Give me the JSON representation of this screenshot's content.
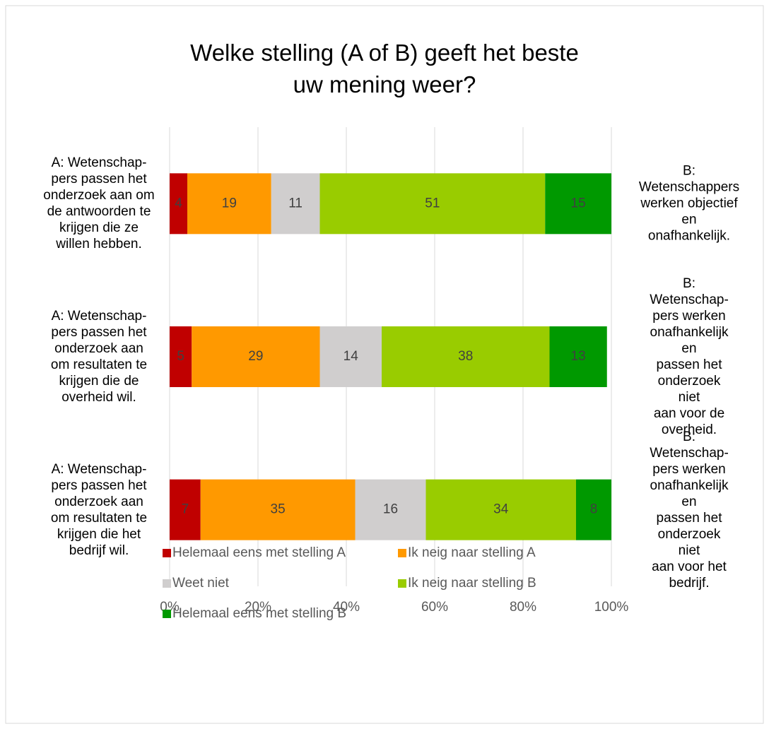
{
  "chart_data": {
    "type": "bar",
    "orientation": "horizontal",
    "stacked": true,
    "title": "Welke stelling (A of B) geeft het beste\nuw mening weer?",
    "categories": [
      "A: Wetenschap-\npers passen het\nonderzoek aan om\nde antwoorden te\nkrijgen die ze\nwillen hebben.",
      "A: Wetenschap-\npers passen het\nonderzoek aan\nom resultaten te\nkrijgen die de\noverheid wil.",
      "A: Wetenschap-\npers passen het\nonderzoek aan\nom resultaten te\nkrijgen die het\nbedrijf wil."
    ],
    "right_labels": [
      "B:\nWetenschappers\nwerken objectief\nen onafhankelijk.",
      "B: Wetenschap-\npers werken\nonafhankelijk en\npassen het\nonderzoek niet\naan voor de\noverheid.",
      "B: Wetenschap-\npers werken\nonafhankelijk en\npassen het\nonderzoek niet\naan voor het\nbedrijf."
    ],
    "series": [
      {
        "name": "Helemaal eens met stelling A",
        "color": "#c00000",
        "values": [
          4,
          5,
          7
        ]
      },
      {
        "name": "Ik neig naar stelling A",
        "color": "#ff9900",
        "values": [
          19,
          29,
          35
        ]
      },
      {
        "name": "Weet niet",
        "color": "#d0cece",
        "values": [
          11,
          14,
          16
        ]
      },
      {
        "name": "Ik neig naar stelling B",
        "color": "#99cc00",
        "values": [
          51,
          38,
          34
        ]
      },
      {
        "name": "Helemaal eens met stelling B",
        "color": "#009900",
        "values": [
          15,
          13,
          8
        ]
      }
    ],
    "xlim": [
      0,
      100
    ],
    "xticks": [
      {
        "value": 0,
        "label": "0%"
      },
      {
        "value": 20,
        "label": "20%"
      },
      {
        "value": 40,
        "label": "40%"
      },
      {
        "value": 60,
        "label": "60%"
      },
      {
        "value": 80,
        "label": "80%"
      },
      {
        "value": 100,
        "label": "100%"
      }
    ],
    "grid": true,
    "legend": "bottom"
  }
}
